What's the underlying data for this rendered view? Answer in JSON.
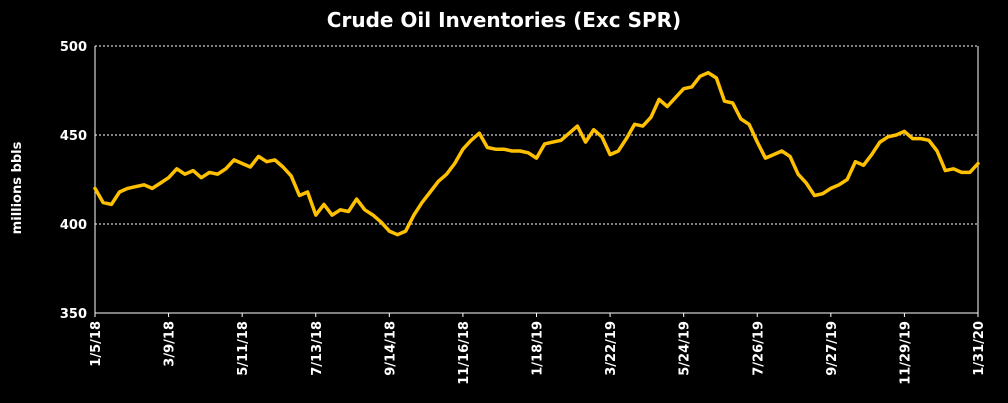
{
  "chart_data": {
    "type": "line",
    "title": "Crude Oil Inventories (Exc SPR)",
    "xlabel": "",
    "ylabel": "millions bbls",
    "ylim": [
      350,
      500
    ],
    "yticks": [
      350,
      400,
      450,
      500
    ],
    "grid": {
      "y": [
        400,
        450
      ],
      "style": "dashed"
    },
    "line_color": "#FFC000",
    "xtick_labels": [
      "1/5/18",
      "3/9/18",
      "5/11/18",
      "7/13/18",
      "9/14/18",
      "11/16/18",
      "1/18/19",
      "3/22/19",
      "5/24/19",
      "7/26/19",
      "9/27/19",
      "11/29/19",
      "1/31/20"
    ],
    "x_start": "2018-01-05",
    "x_interval_days": 7,
    "series": [
      {
        "name": "",
        "values": [
          420,
          412,
          411,
          418,
          420,
          421,
          422,
          420,
          423,
          426,
          431,
          428,
          430,
          426,
          429,
          428,
          431,
          436,
          434,
          432,
          438,
          435,
          436,
          432,
          427,
          416,
          418,
          405,
          411,
          405,
          408,
          407,
          414,
          408,
          405,
          401,
          396,
          394,
          396,
          405,
          412,
          418,
          424,
          428,
          434,
          442,
          447,
          451,
          443,
          442,
          442,
          441,
          441,
          440,
          437,
          445,
          446,
          447,
          451,
          455,
          446,
          453,
          449,
          439,
          441,
          448,
          456,
          455,
          460,
          470,
          466,
          471,
          476,
          477,
          483,
          485,
          482,
          469,
          468,
          459,
          456,
          446,
          437,
          439,
          441,
          438,
          428,
          423,
          416,
          417,
          420,
          422,
          425,
          435,
          433,
          439,
          446,
          449,
          450,
          452,
          448,
          448,
          447,
          441,
          430,
          431,
          429,
          429,
          434
        ]
      }
    ]
  }
}
